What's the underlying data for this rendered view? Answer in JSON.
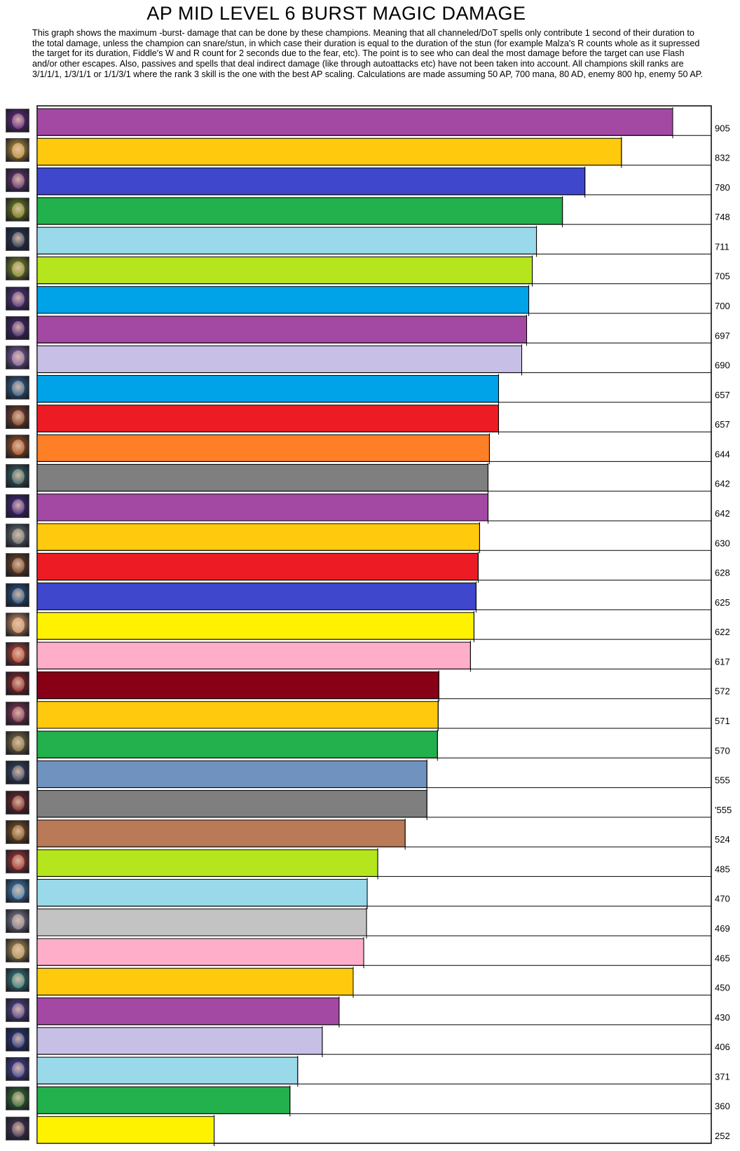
{
  "header": {
    "title": "AP MID LEVEL 6 BURST MAGIC DAMAGE",
    "description": "This graph shows the maximum -burst- damage that can be done by these champions. Meaning that all channeled/DoT spells only contribute 1 second of their duration to the total damage, unless the champion can snare/stun, in which case their duration is equal to the duration of the stun (for example Malza's R counts whole as it supressed the target for its duration, Fiddle's W and R count for 2 seconds due to the fear, etc). The point is to see who can deal the most damage before the target can use Flash and/or other escapes. Also, passives and spells that deal indirect damage (like through autoattacks etc) have not been taken into account.  All champions skill ranks are 3/1/1/1, 1/3/1/1 or 1/1/3/1 where the rank 3 skill is the one with the best AP scaling. Calculations are made assuming 50 AP, 700 mana, 80 AD, enemy 800 hp, enemy 50 AP."
  },
  "chart_data": {
    "type": "bar",
    "orientation": "horizontal",
    "title": "AP MID LEVEL 6 BURST MAGIC DAMAGE",
    "values": [
      905,
      832,
      780,
      748,
      711,
      705,
      700,
      697,
      690,
      657,
      657,
      644,
      642,
      642,
      630,
      628,
      625,
      622,
      617,
      572,
      571,
      570,
      555,
      555,
      524,
      485,
      470,
      469,
      465,
      450,
      430,
      406,
      371,
      360,
      252
    ],
    "value_labels": [
      "905",
      "832",
      "780",
      "748",
      "711",
      "705",
      "700",
      "697",
      "690",
      "657",
      "657",
      "644",
      "642",
      "642",
      "630",
      "628",
      "625",
      "622",
      "617",
      "572",
      "571",
      "570",
      "555",
      "'555",
      "524",
      "485",
      "470",
      "469",
      "465",
      "450",
      "430",
      "406",
      "371",
      "360",
      "252"
    ],
    "colors": [
      "#a349a4",
      "#ffc90e",
      "#3f48cc",
      "#22b14c",
      "#99d9ea",
      "#b5e61d",
      "#00a2e8",
      "#a349a4",
      "#c8bfe7",
      "#00a2e8",
      "#ed1c24",
      "#ff7f27",
      "#7f7f7f",
      "#a349a4",
      "#ffc90e",
      "#ed1c24",
      "#3f48cc",
      "#fff200",
      "#ffaec9",
      "#880015",
      "#ffc90e",
      "#22b14c",
      "#7092be",
      "#7f7f7f",
      "#b97a57",
      "#b5e61d",
      "#99d9ea",
      "#c3c3c3",
      "#ffaec9",
      "#ffc90e",
      "#a349a4",
      "#c8bfe7",
      "#99d9ea",
      "#22b14c",
      "#fff200"
    ],
    "icon_colors": [
      "#6a2c8a",
      "#c8a040",
      "#6a3a7a",
      "#7a8a20",
      "#2a3a5a",
      "#8a9a30",
      "#5a3a8a",
      "#4a2a7a",
      "#8a6ab0",
      "#3a6a9a",
      "#8a4a30",
      "#b05a2a",
      "#3a6a6a",
      "#4a2a8a",
      "#6a7a7a",
      "#7a4a2a",
      "#2a5a8a",
      "#e0a070",
      "#c04a3a",
      "#9a2a2a",
      "#8a3a5a",
      "#8a7a4a",
      "#3a4a6a",
      "#7a2a2a",
      "#8a5a20",
      "#b03a3a",
      "#4a8ac0",
      "#8a8aa0",
      "#c0a060",
      "#3a8a8a",
      "#5a4a9a",
      "#2a3a8a",
      "#4a4aa0",
      "#3a7a3a",
      "#4a3a5a"
    ],
    "icons": [
      "champion-portrait",
      "champion-portrait",
      "champion-portrait",
      "champion-portrait",
      "champion-portrait",
      "champion-portrait",
      "champion-portrait",
      "champion-portrait",
      "champion-portrait",
      "champion-portrait",
      "champion-portrait",
      "champion-portrait",
      "champion-portrait",
      "champion-portrait",
      "champion-portrait",
      "champion-portrait",
      "champion-portrait",
      "champion-portrait",
      "champion-portrait",
      "champion-portrait",
      "champion-portrait",
      "champion-portrait",
      "champion-portrait",
      "champion-portrait",
      "champion-portrait",
      "champion-portrait",
      "champion-portrait",
      "champion-portrait",
      "champion-portrait",
      "champion-portrait",
      "champion-portrait",
      "champion-portrait",
      "champion-portrait",
      "champion-portrait",
      "champion-portrait"
    ],
    "xlim": [
      0,
      970
    ],
    "grid": false,
    "legend": "none"
  }
}
